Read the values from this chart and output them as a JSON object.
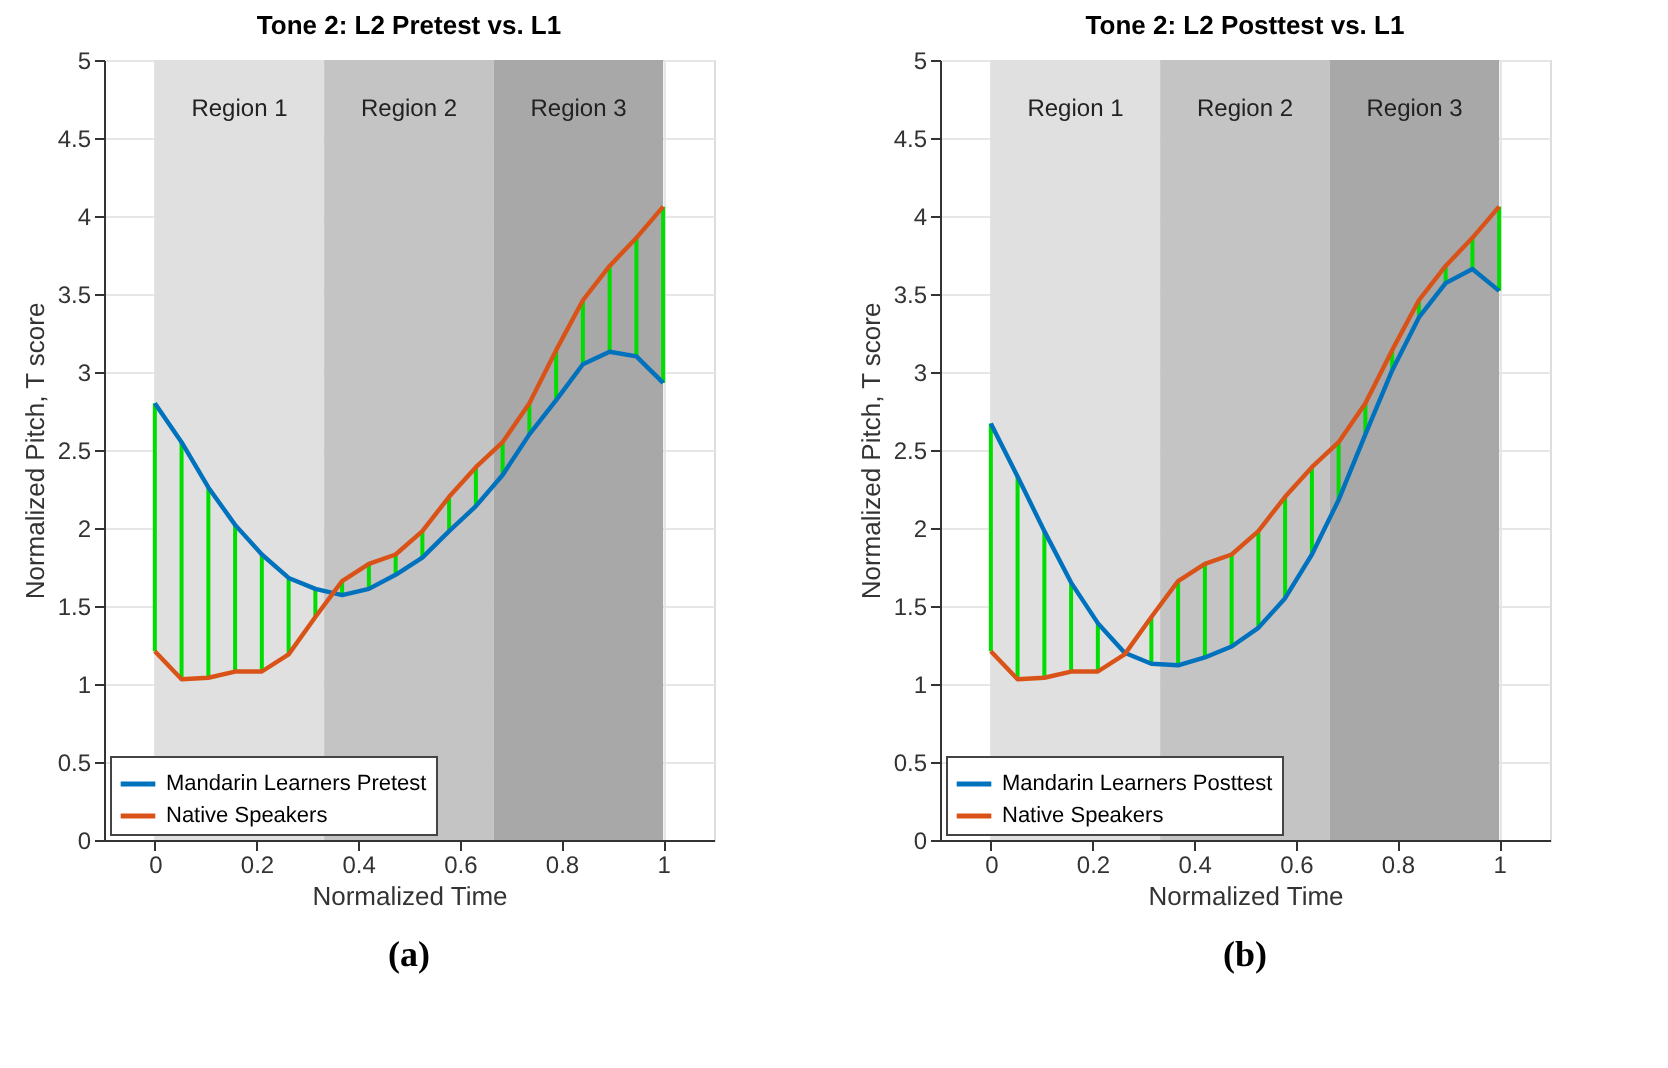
{
  "chart_data": [
    {
      "type": "line",
      "title": "Tone 2: L2 Pretest vs. L1",
      "xlabel": "Normalized Time",
      "ylabel": "Normalized Pitch, T score",
      "x": [
        0,
        0.0526,
        0.1053,
        0.1579,
        0.2105,
        0.2632,
        0.3158,
        0.3684,
        0.4211,
        0.4737,
        0.5263,
        0.5789,
        0.6316,
        0.6842,
        0.7368,
        0.7895,
        0.8421,
        0.8947,
        0.9474,
        1
      ],
      "series": [
        {
          "name": "Mandarin Learners Pretest",
          "color": "#0072bd",
          "values": [
            2.8,
            2.55,
            2.26,
            2.02,
            1.83,
            1.68,
            1.61,
            1.57,
            1.61,
            1.7,
            1.81,
            1.98,
            2.14,
            2.34,
            2.6,
            2.82,
            3.05,
            3.13,
            3.1,
            2.93
          ]
        },
        {
          "name": "Native Speakers",
          "color": "#d95319",
          "values": [
            1.21,
            1.03,
            1.04,
            1.08,
            1.08,
            1.19,
            1.43,
            1.66,
            1.77,
            1.83,
            1.98,
            2.2,
            2.39,
            2.55,
            2.8,
            3.14,
            3.46,
            3.68,
            3.86,
            4.06
          ],
          "errors": [
            [
              1.21,
              2.8
            ],
            [
              1.03,
              2.55
            ],
            [
              1.04,
              2.26
            ],
            [
              1.08,
              2.02
            ],
            [
              1.08,
              1.83
            ],
            [
              1.19,
              1.68
            ],
            [
              1.43,
              1.61
            ],
            [
              1.57,
              1.66
            ],
            [
              1.61,
              1.77
            ],
            [
              1.7,
              1.83
            ],
            [
              1.81,
              1.98
            ],
            [
              1.98,
              2.2
            ],
            [
              2.14,
              2.39
            ],
            [
              2.34,
              2.55
            ],
            [
              2.6,
              2.8
            ],
            [
              2.82,
              3.14
            ],
            [
              3.05,
              3.46
            ],
            [
              3.13,
              3.68
            ],
            [
              3.1,
              3.86
            ],
            [
              2.93,
              4.06
            ]
          ]
        }
      ],
      "bands": [
        {
          "axis": "x",
          "from": 0,
          "to": 0.333,
          "label": "Region 1",
          "color": "#e0e0e0"
        },
        {
          "axis": "x",
          "from": 0.333,
          "to": 0.667,
          "label": "Region 2",
          "color": "#c4c4c4"
        },
        {
          "axis": "x",
          "from": 0.667,
          "to": 1,
          "label": "Region 3",
          "color": "#a8a8a8"
        }
      ],
      "xlim": [
        -0.1,
        1.1
      ],
      "xticks": [
        0,
        0.2,
        0.4,
        0.6,
        0.8,
        1
      ],
      "ylim": [
        0,
        5
      ],
      "yticks": [
        0,
        0.5,
        1,
        1.5,
        2,
        2.5,
        3,
        3.5,
        4,
        4.5,
        5
      ],
      "grid": true,
      "legend": "bottom left",
      "marker": "none",
      "line_style": "solid",
      "annotations": [
        "(a)"
      ]
    },
    {
      "type": "line",
      "title": "Tone 2: L2 Posttest vs. L1",
      "xlabel": "Normalized Time",
      "ylabel": "Normalized Pitch, T score",
      "x": [
        0,
        0.0526,
        0.1053,
        0.1579,
        0.2105,
        0.2632,
        0.3158,
        0.3684,
        0.4211,
        0.4737,
        0.5263,
        0.5789,
        0.6316,
        0.6842,
        0.7368,
        0.7895,
        0.8421,
        0.8947,
        0.9474,
        1
      ],
      "series": [
        {
          "name": "Mandarin Learners Posttest",
          "color": "#0072bd",
          "values": [
            2.67,
            2.33,
            1.98,
            1.65,
            1.39,
            1.2,
            1.13,
            1.12,
            1.17,
            1.24,
            1.36,
            1.55,
            1.83,
            2.18,
            2.6,
            3.01,
            3.35,
            3.57,
            3.66,
            3.52
          ]
        },
        {
          "name": "Native Speakers",
          "color": "#d95319",
          "values": [
            1.21,
            1.03,
            1.04,
            1.08,
            1.08,
            1.19,
            1.43,
            1.66,
            1.77,
            1.83,
            1.98,
            2.2,
            2.39,
            2.55,
            2.8,
            3.14,
            3.46,
            3.68,
            3.86,
            4.06
          ],
          "errors": [
            [
              1.21,
              2.67
            ],
            [
              1.03,
              2.33
            ],
            [
              1.04,
              1.98
            ],
            [
              1.08,
              1.65
            ],
            [
              1.08,
              1.39
            ],
            [
              1.19,
              1.2
            ],
            [
              1.13,
              1.43
            ],
            [
              1.12,
              1.66
            ],
            [
              1.17,
              1.77
            ],
            [
              1.24,
              1.83
            ],
            [
              1.36,
              1.98
            ],
            [
              1.55,
              2.2
            ],
            [
              1.83,
              2.39
            ],
            [
              2.18,
              2.55
            ],
            [
              2.6,
              2.8
            ],
            [
              3.01,
              3.14
            ],
            [
              3.35,
              3.46
            ],
            [
              3.57,
              3.68
            ],
            [
              3.66,
              3.86
            ],
            [
              3.52,
              4.06
            ]
          ]
        }
      ],
      "bands": [
        {
          "axis": "x",
          "from": 0,
          "to": 0.333,
          "label": "Region 1",
          "color": "#e0e0e0"
        },
        {
          "axis": "x",
          "from": 0.333,
          "to": 0.667,
          "label": "Region 2",
          "color": "#c4c4c4"
        },
        {
          "axis": "x",
          "from": 0.667,
          "to": 1,
          "label": "Region 3",
          "color": "#a8a8a8"
        }
      ],
      "xlim": [
        -0.1,
        1.1
      ],
      "xticks": [
        0,
        0.2,
        0.4,
        0.6,
        0.8,
        1
      ],
      "ylim": [
        0,
        5
      ],
      "yticks": [
        0,
        0.5,
        1,
        1.5,
        2,
        2.5,
        3,
        3.5,
        4,
        4.5,
        5
      ],
      "grid": true,
      "legend": "bottom left",
      "marker": "none",
      "line_style": "solid",
      "annotations": [
        "(b)"
      ]
    }
  ]
}
